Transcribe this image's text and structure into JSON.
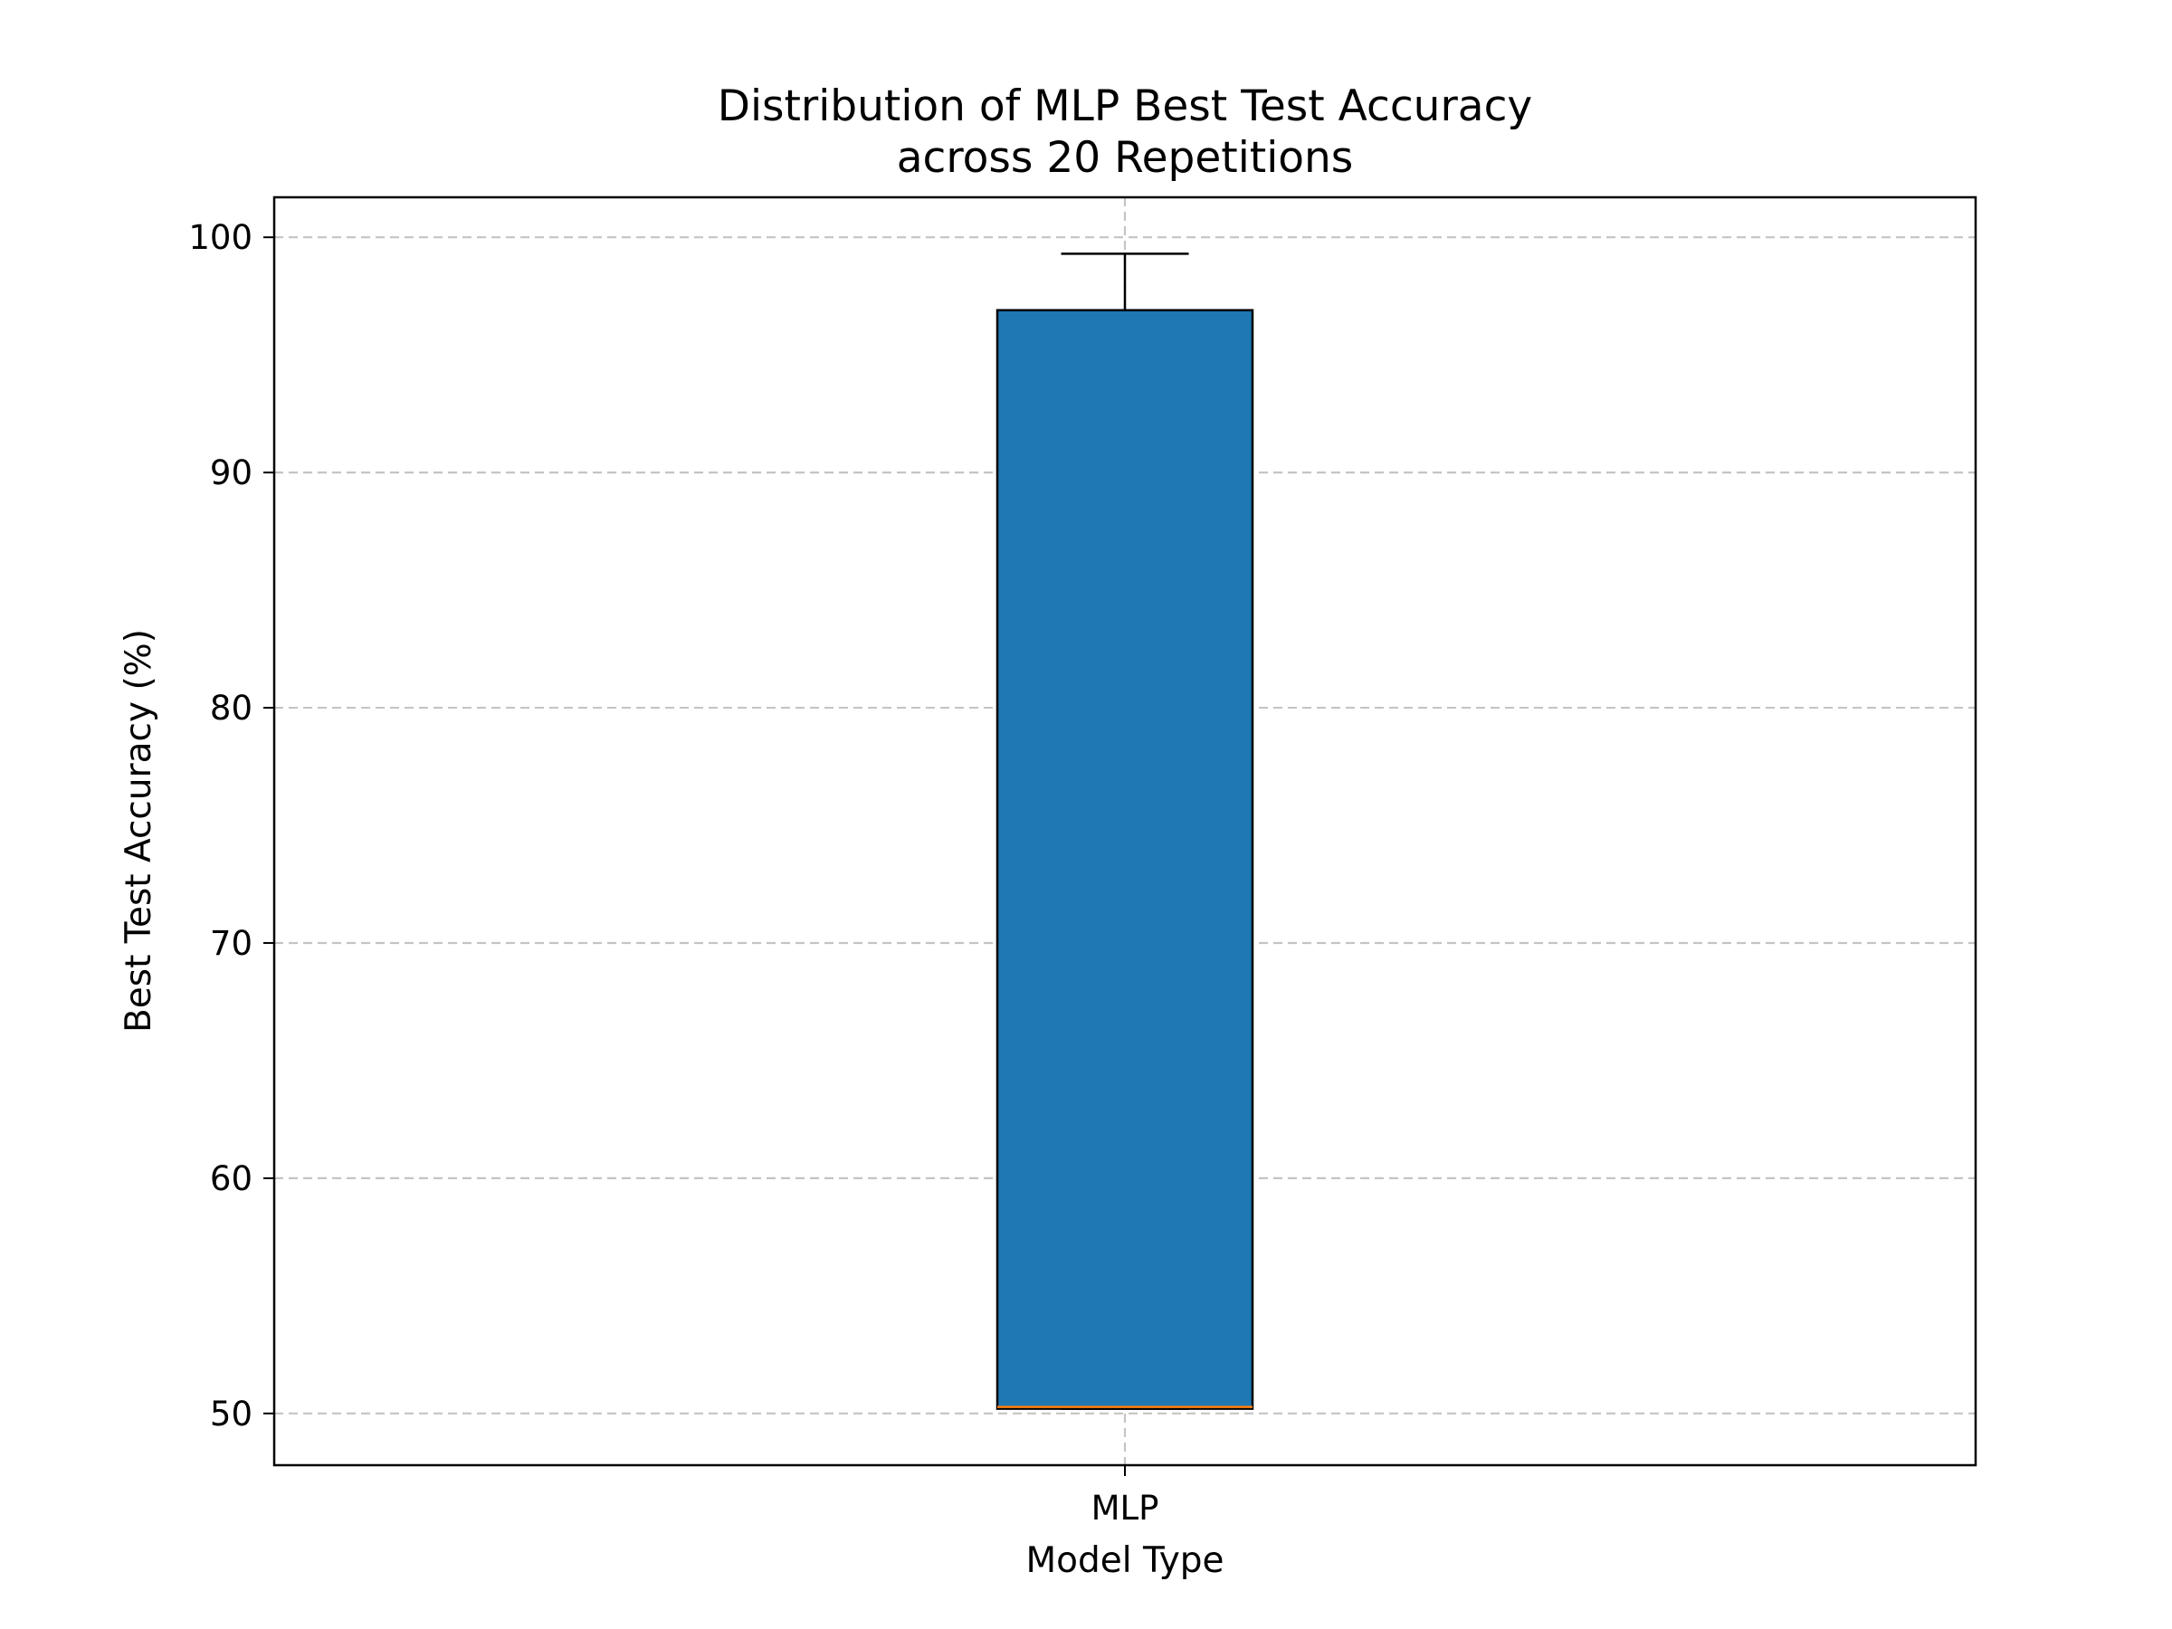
{
  "chart_data": {
    "type": "box",
    "title_lines": [
      "Distribution of MLP Best Test Accuracy",
      "across 20 Repetitions"
    ],
    "xlabel": "Model Type",
    "ylabel": "Best Test Accuracy (%)",
    "categories": [
      "MLP"
    ],
    "ylim": [
      47.8,
      101.7
    ],
    "yticks": [
      50,
      60,
      70,
      80,
      90,
      100
    ],
    "grid": true,
    "legend": null,
    "boxes": [
      {
        "category": "MLP",
        "whisker_low": 50.2,
        "q1": 50.2,
        "median": 50.2,
        "q3": 96.9,
        "whisker_high": 99.3,
        "fill_color": "#1f77b4",
        "median_color": "#ff7f0e"
      }
    ]
  }
}
